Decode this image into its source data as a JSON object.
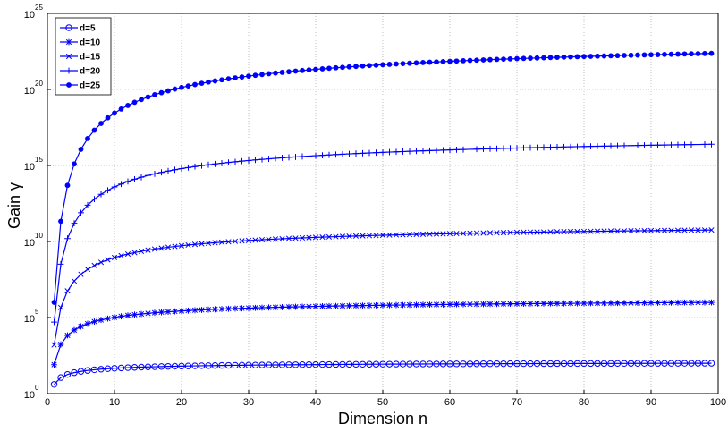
{
  "chart_data": {
    "type": "line",
    "title": "",
    "xlabel": "Dimension n",
    "ylabel": "Gain γ",
    "xlim": [
      0,
      100
    ],
    "ylim": [
      0,
      25
    ],
    "yscale": "log",
    "x_ticks": [
      {
        "value": 0,
        "label": "0"
      },
      {
        "value": 10,
        "label": "10"
      },
      {
        "value": 20,
        "label": "20"
      },
      {
        "value": 30,
        "label": "30"
      },
      {
        "value": 40,
        "label": "40"
      },
      {
        "value": 50,
        "label": "50"
      },
      {
        "value": 60,
        "label": "60"
      },
      {
        "value": 70,
        "label": "70"
      },
      {
        "value": 80,
        "label": "80"
      },
      {
        "value": 90,
        "label": "90"
      },
      {
        "value": 100,
        "label": "100"
      }
    ],
    "y_ticks": [
      {
        "exp": 0,
        "base": "10",
        "sup": "0"
      },
      {
        "exp": 5,
        "base": "10",
        "sup": "5"
      },
      {
        "exp": 10,
        "base": "10",
        "sup": "10"
      },
      {
        "exp": 15,
        "base": "10",
        "sup": "15"
      },
      {
        "exp": 20,
        "base": "10",
        "sup": "20"
      },
      {
        "exp": 25,
        "base": "10",
        "sup": "25"
      }
    ],
    "grid": true,
    "legend_position": "top-left",
    "line_color": "#0000ff",
    "n_start": 1,
    "n_end": 99,
    "series": [
      {
        "name": "d=5",
        "marker": "circle",
        "log10_gain_n1": 0.6,
        "log10_gain_limit": 2.15
      },
      {
        "name": "d=10",
        "marker": "asterisk",
        "log10_gain_n1": 1.9,
        "log10_gain_limit": 6.45
      },
      {
        "name": "d=15",
        "marker": "x",
        "log10_gain_n1": 3.2,
        "log10_gain_limit": 11.6
      },
      {
        "name": "d=20",
        "marker": "plus",
        "log10_gain_n1": 4.7,
        "log10_gain_limit": 17.7
      },
      {
        "name": "d=25",
        "marker": "dot",
        "log10_gain_n1": 6.0,
        "log10_gain_limit": 24.2
      }
    ]
  }
}
